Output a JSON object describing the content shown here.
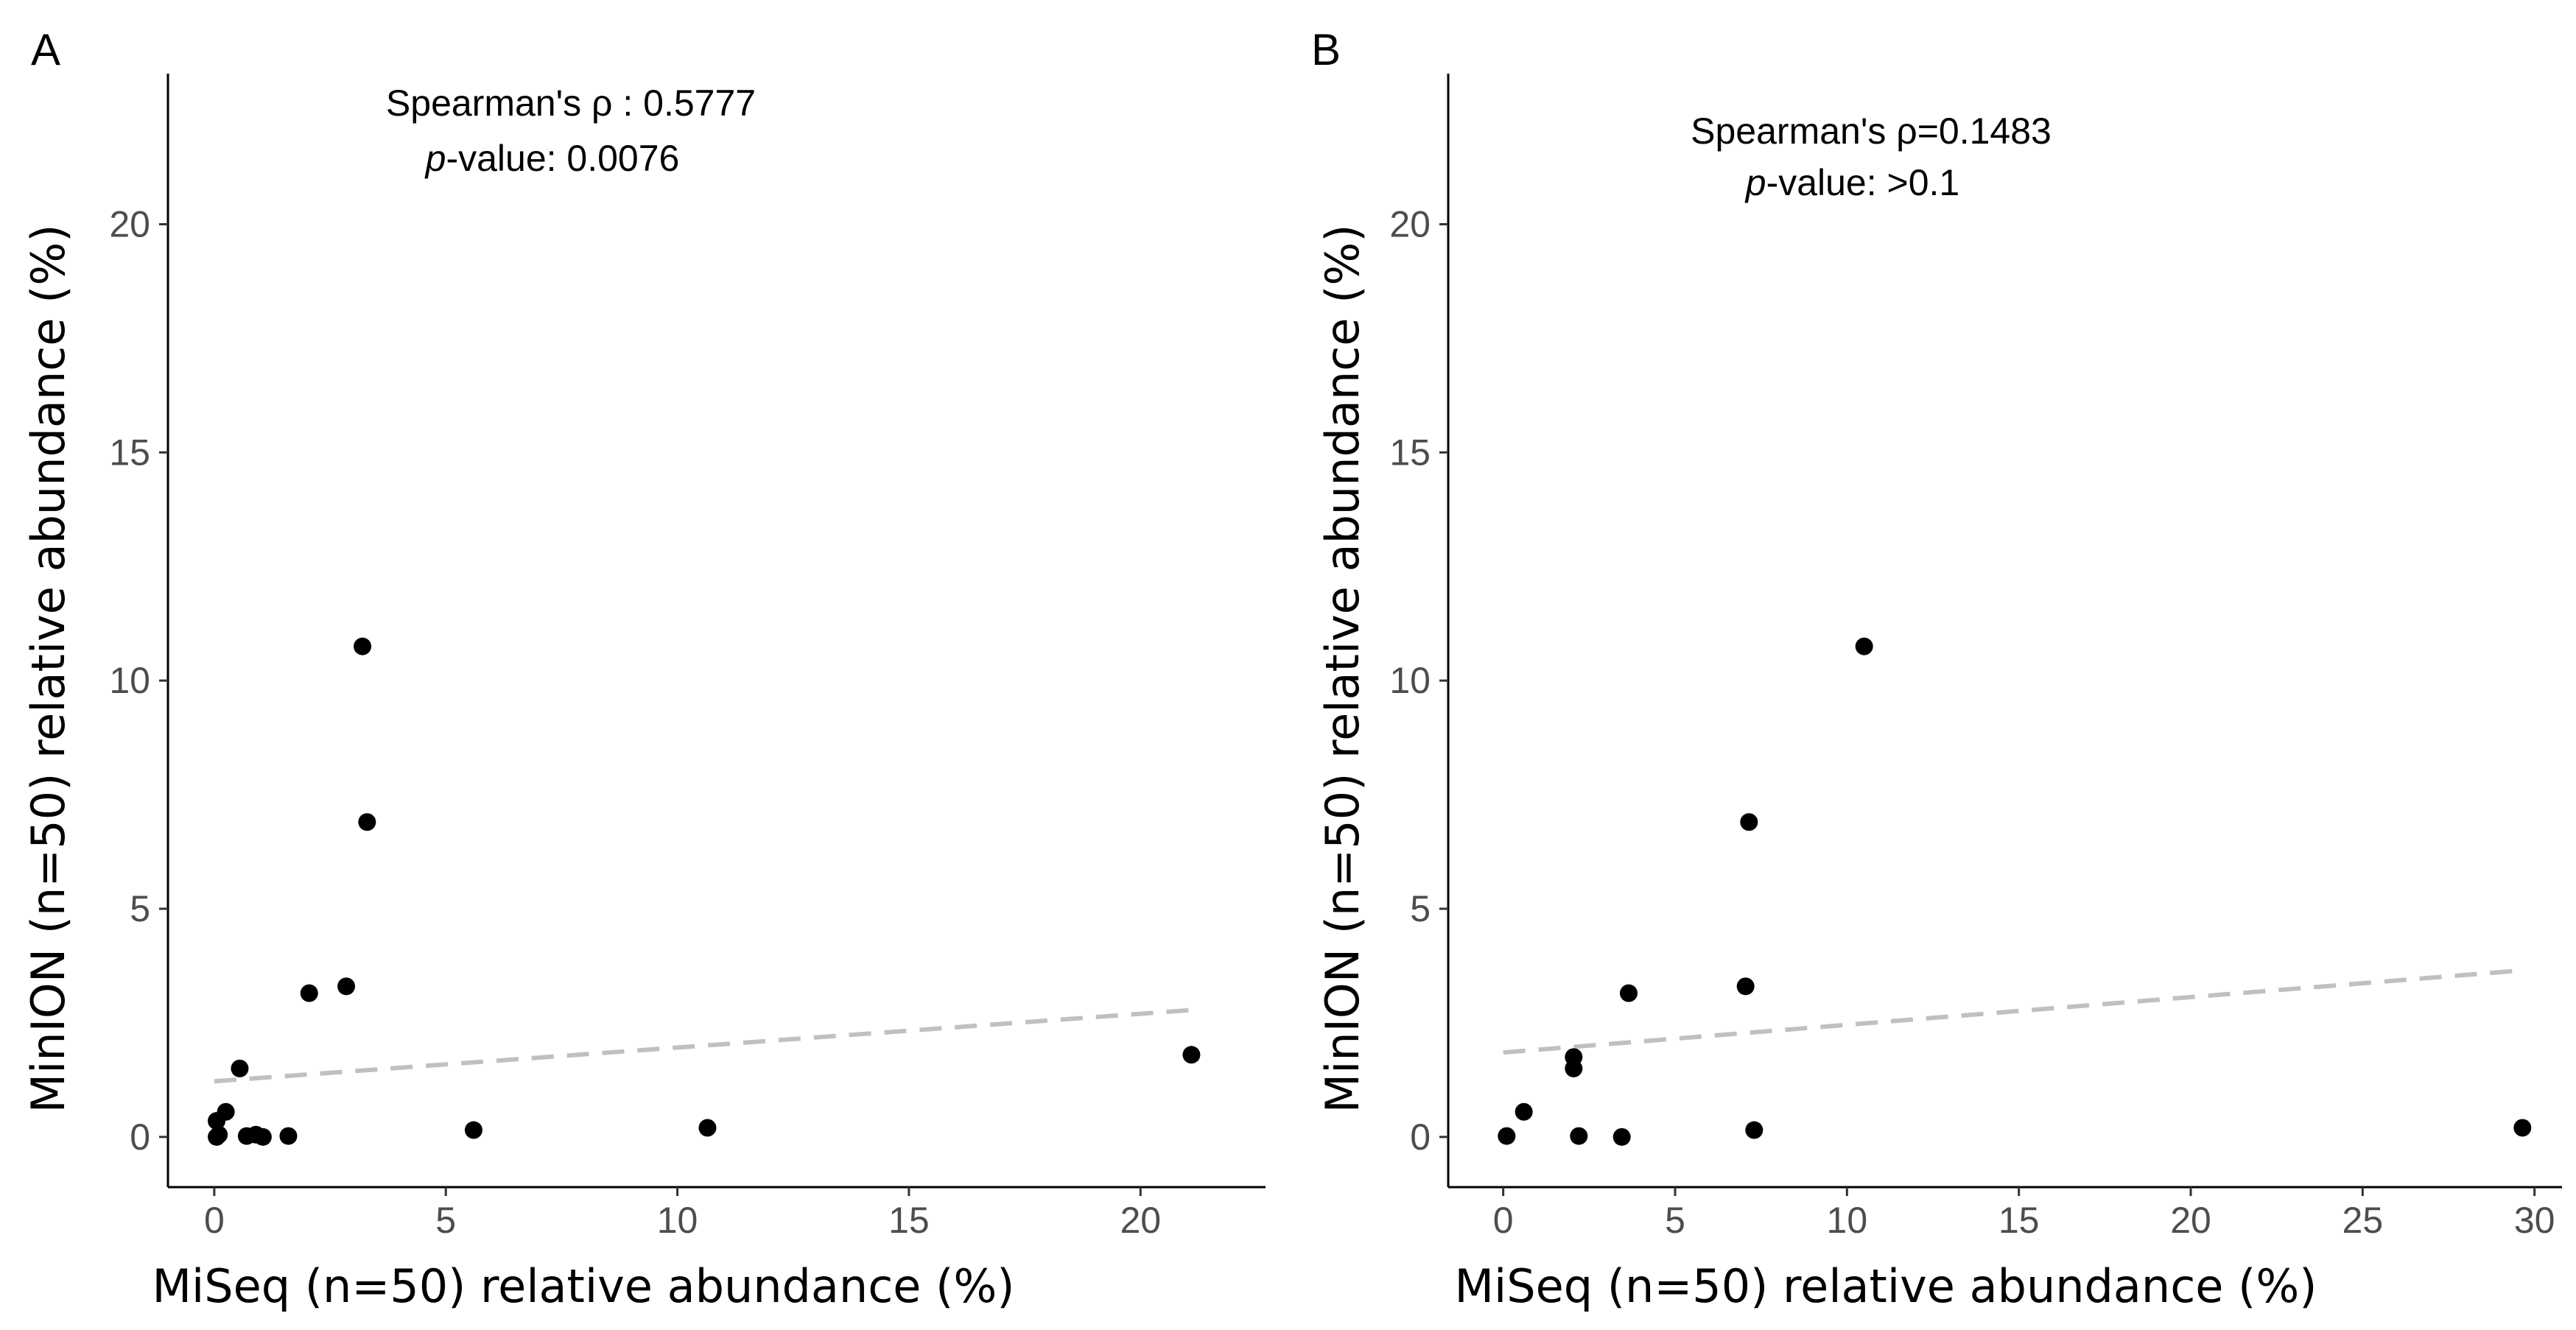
{
  "chart_data": [
    {
      "type": "scatter",
      "panel": "A",
      "xlabel": "MiSeq (n=50) relative abundance (%)",
      "ylabel": "MinION (n=50) relative abundance (%)",
      "xlim": [
        -1,
        22.7
      ],
      "ylim": [
        -1.1,
        23.3
      ],
      "xticks": [
        0,
        5,
        10,
        15,
        20
      ],
      "yticks": [
        0,
        5,
        10,
        15,
        20
      ],
      "annotation": {
        "line1": "Spearman's ρ : 0.5777",
        "line2_italic": "p",
        "line2_rest": "-value:  0.0076"
      },
      "points": [
        {
          "x": 0.05,
          "y": 0.0
        },
        {
          "x": 0.1,
          "y": 0.05
        },
        {
          "x": 0.05,
          "y": 0.35
        },
        {
          "x": 0.25,
          "y": 0.55
        },
        {
          "x": 0.55,
          "y": 1.5
        },
        {
          "x": 0.7,
          "y": 0.02
        },
        {
          "x": 0.9,
          "y": 0.05
        },
        {
          "x": 1.05,
          "y": 0.0
        },
        {
          "x": 1.6,
          "y": 0.02
        },
        {
          "x": 2.05,
          "y": 3.15
        },
        {
          "x": 2.85,
          "y": 3.3
        },
        {
          "x": 3.2,
          "y": 10.75
        },
        {
          "x": 3.3,
          "y": 6.9
        },
        {
          "x": 5.6,
          "y": 0.15
        },
        {
          "x": 10.65,
          "y": 0.2
        },
        {
          "x": 21.1,
          "y": 1.8
        }
      ],
      "trendline": {
        "x": [
          0,
          21.1
        ],
        "y": [
          1.22,
          2.78
        ]
      }
    },
    {
      "type": "scatter",
      "panel": "B",
      "xlabel": "MiSeq (n=50) relative abundance (%)",
      "ylabel": "MinION (n=50) relative abundance (%)",
      "xlim": [
        -1.6,
        30.8
      ],
      "ylim": [
        -1.1,
        23.3
      ],
      "xticks": [
        0,
        5,
        10,
        15,
        20,
        25,
        30
      ],
      "yticks": [
        0,
        5,
        10,
        15,
        20
      ],
      "annotation": {
        "line1": "Spearman's ρ=0.1483",
        "line2_italic": "p",
        "line2_rest": "-value: >0.1"
      },
      "points": [
        {
          "x": 0.1,
          "y": 0.02
        },
        {
          "x": 0.6,
          "y": 0.55
        },
        {
          "x": 2.05,
          "y": 1.75
        },
        {
          "x": 2.05,
          "y": 1.5
        },
        {
          "x": 2.2,
          "y": 0.02
        },
        {
          "x": 3.45,
          "y": 0.0
        },
        {
          "x": 3.65,
          "y": 3.15
        },
        {
          "x": 7.05,
          "y": 3.3
        },
        {
          "x": 7.15,
          "y": 6.9
        },
        {
          "x": 7.3,
          "y": 0.15
        },
        {
          "x": 10.5,
          "y": 10.75
        },
        {
          "x": 29.65,
          "y": 0.2
        }
      ],
      "trendline": {
        "x": [
          0,
          29.65
        ],
        "y": [
          1.85,
          3.65
        ]
      }
    }
  ]
}
